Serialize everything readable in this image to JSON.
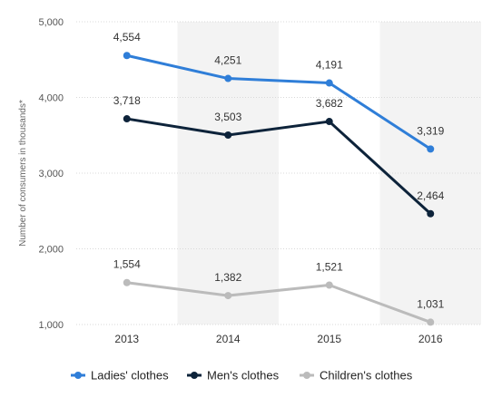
{
  "chart_data": {
    "type": "line",
    "categories": [
      "2013",
      "2014",
      "2015",
      "2016"
    ],
    "series": [
      {
        "name": "Ladies' clothes",
        "color": "#2f7ed8",
        "values": [
          4554,
          4251,
          4191,
          3319
        ],
        "labels": [
          "4,554",
          "4,251",
          "4,191",
          "3,319"
        ]
      },
      {
        "name": "Men's clothes",
        "color": "#0d233a",
        "values": [
          3718,
          3503,
          3682,
          2464
        ],
        "labels": [
          "3,718",
          "3,503",
          "3,682",
          "2,464"
        ]
      },
      {
        "name": "Children's clothes",
        "color": "#bbbbbb",
        "values": [
          1554,
          1382,
          1521,
          1031
        ],
        "labels": [
          "1,554",
          "1,382",
          "1,521",
          "1,031"
        ]
      }
    ],
    "ylabel": "Number of consumers in thousands*",
    "xlabel": "",
    "ylim": [
      1000,
      5000
    ],
    "yticks": [
      1000,
      2000,
      3000,
      4000,
      5000
    ],
    "ytick_labels": [
      "1,000",
      "2,000",
      "3,000",
      "4,000",
      "5,000"
    ],
    "grid": true,
    "alternating_band_color": "#f3f3f3",
    "legend_position": "bottom"
  }
}
